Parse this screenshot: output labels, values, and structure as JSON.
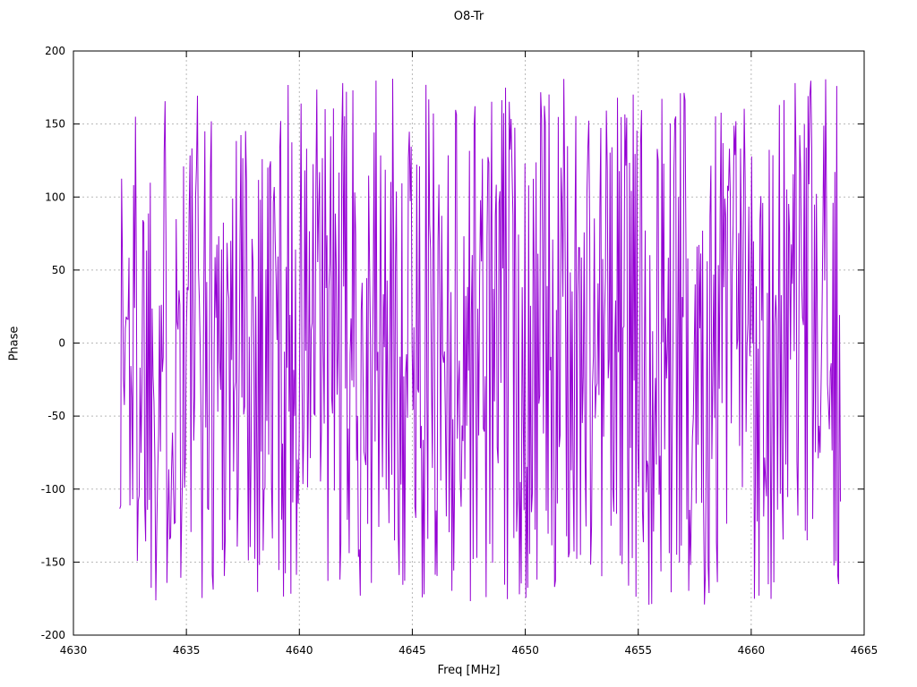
{
  "chart_data": {
    "type": "line",
    "title": "O8-Tr",
    "xlabel": "Freq [MHz]",
    "ylabel": "Phase",
    "xlim": [
      4630,
      4665
    ],
    "ylim": [
      -200,
      200
    ],
    "xticks": [
      4630,
      4635,
      4640,
      4645,
      4650,
      4655,
      4660,
      4665
    ],
    "yticks": [
      -200,
      -150,
      -100,
      -50,
      0,
      50,
      100,
      150,
      200
    ],
    "grid": true,
    "grid_style": "dotted",
    "legend": "none",
    "background_color": "#ffffff",
    "series": [
      {
        "name": "O8-Tr",
        "color": "#9400d3",
        "description": "wrapped phase noise, dense random phase values between -180 and +180 degrees",
        "x_start": 4632.05,
        "x_end": 4663.95,
        "n_points": 780,
        "y_min": -180,
        "y_max": 181,
        "seed": 1337
      }
    ]
  }
}
